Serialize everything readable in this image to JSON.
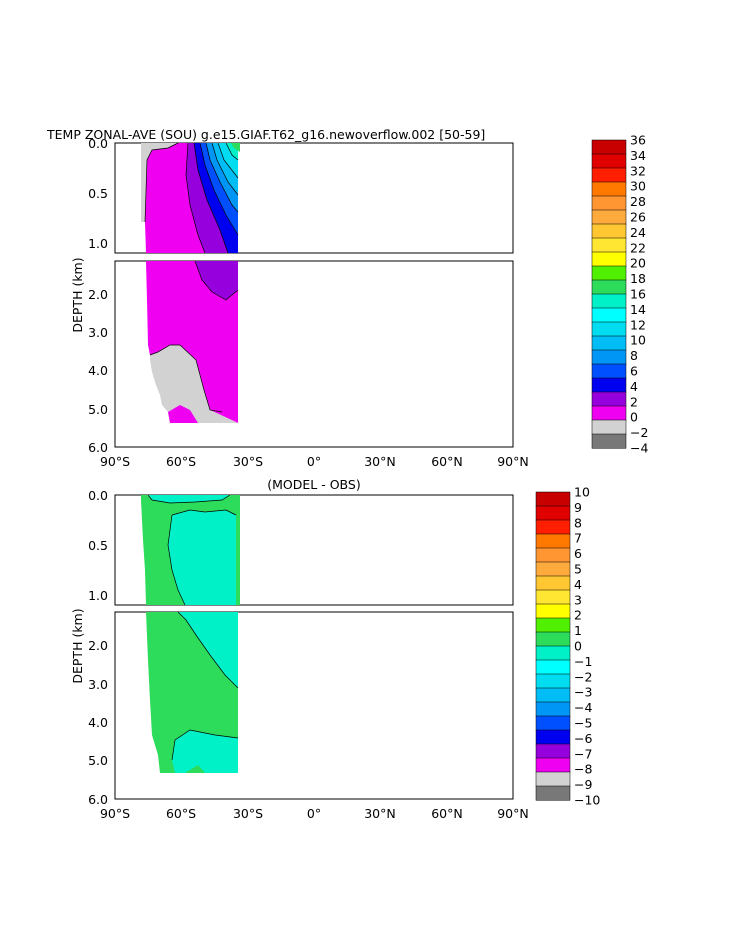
{
  "chart_data": [
    {
      "type": "heatmap",
      "title": "TEMP ZONAL-AVE (SOU) g.e15.GIAF.T62_g16.newoverflow.002 [50-59]",
      "subtitle": "",
      "ylabel": "DEPTH (km)",
      "xlabel": "",
      "x_ticks": [
        -90,
        -60,
        -30,
        0,
        30,
        60,
        90
      ],
      "x_tick_labels": [
        "90°S",
        "60°S",
        "30°S",
        "0°",
        "30°N",
        "60°N",
        "90°N"
      ],
      "x_range": [
        -90,
        90
      ],
      "upper_panel": {
        "depth_range": [
          0,
          1.15
        ],
        "y_tick_labels": [
          "0.0",
          "0.5",
          "1.0"
        ],
        "y_ticks": [
          0,
          0.5,
          1.0
        ]
      },
      "lower_panel": {
        "depth_range": [
          1.3,
          6.0
        ],
        "y_tick_labels": [
          "2.0",
          "3.0",
          "4.0",
          "5.0",
          "6.0"
        ],
        "y_ticks": [
          2,
          3,
          4,
          5,
          6
        ]
      },
      "data_extent_lat": [
        -78,
        -34
      ],
      "colorbar": {
        "labels": [
          "36",
          "34",
          "32",
          "30",
          "28",
          "26",
          "24",
          "22",
          "20",
          "18",
          "16",
          "14",
          "12",
          "10",
          "8",
          "6",
          "4",
          "2",
          "0",
          "-2",
          "-4"
        ],
        "colors": [
          "#c80000",
          "#e00000",
          "#ff1e00",
          "#ff7800",
          "#ff9632",
          "#ffaa3c",
          "#ffc832",
          "#ffe632",
          "#ffff00",
          "#50f000",
          "#2ddc5a",
          "#00f0c8",
          "#00ffff",
          "#00dcf0",
          "#00bef5",
          "#0096f5",
          "#0050ff",
          "#0000f0",
          "#9600dc",
          "#f000f0",
          "#d2d2d2",
          "#787878"
        ]
      }
    },
    {
      "type": "heatmap",
      "title": "",
      "subtitle": "(MODEL - OBS)",
      "ylabel": "DEPTH (km)",
      "xlabel": "",
      "x_ticks": [
        -90,
        -60,
        -30,
        0,
        30,
        60,
        90
      ],
      "x_tick_labels": [
        "90°S",
        "60°S",
        "30°S",
        "0°",
        "30°N",
        "60°N",
        "90°N"
      ],
      "x_range": [
        -90,
        90
      ],
      "upper_panel": {
        "depth_range": [
          0,
          1.15
        ],
        "y_tick_labels": [
          "0.0",
          "0.5",
          "1.0"
        ],
        "y_ticks": [
          0,
          0.5,
          1.0
        ]
      },
      "lower_panel": {
        "depth_range": [
          1.3,
          6.0
        ],
        "y_tick_labels": [
          "2.0",
          "3.0",
          "4.0",
          "5.0",
          "6.0"
        ],
        "y_ticks": [
          2,
          3,
          4,
          5,
          6
        ]
      },
      "data_extent_lat": [
        -78,
        -34
      ],
      "colorbar": {
        "labels": [
          "10",
          "9",
          "8",
          "7",
          "6",
          "5",
          "4",
          "3",
          "2",
          "1",
          "0",
          "-1",
          "-2",
          "-3",
          "-4",
          "-5",
          "-6",
          "-7",
          "-8",
          "-9",
          "-10"
        ],
        "colors": [
          "#c80000",
          "#e00000",
          "#ff1e00",
          "#ff7800",
          "#ff9632",
          "#ffaa3c",
          "#ffc832",
          "#ffe632",
          "#ffff00",
          "#50f000",
          "#2ddc5a",
          "#00f0c8",
          "#00ffff",
          "#00dcf0",
          "#00bef5",
          "#0096f5",
          "#0050ff",
          "#0000f0",
          "#9600dc",
          "#f000f0",
          "#d2d2d2",
          "#787878"
        ]
      }
    }
  ]
}
